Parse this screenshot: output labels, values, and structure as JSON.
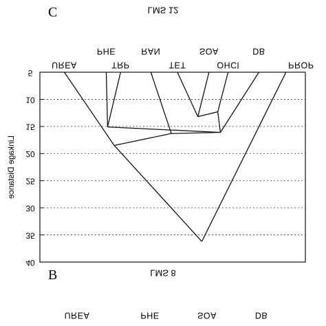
{
  "chart_data": {
    "type": "dendrogram",
    "panel_letter": "C",
    "title": "LMS 12",
    "ylabel": "Linkage Distance",
    "yticks": [
      "5",
      "10",
      "15",
      "20",
      "25",
      "30",
      "35",
      "40"
    ],
    "ylim": [
      5,
      40
    ],
    "y_inverted": true,
    "grid": true,
    "leaves": [
      "UREA",
      "PHE",
      "TRP",
      "RAN",
      "TET",
      "SOA",
      "OHCl",
      "DB",
      "PROP"
    ],
    "merges": [
      {
        "left": "TET",
        "right": "SOA",
        "height": 13.2
      },
      {
        "left": "TET-SOA",
        "right": "OHCl",
        "height": 12.3
      },
      {
        "left": "PHE",
        "right": "TRP",
        "height": 15.1
      },
      {
        "left": "TET-SOA-OHCl",
        "right": "DB",
        "height": 16.1
      },
      {
        "left": "PHE-TRP",
        "right": "RAN-TET-SOA-OHCl-DB",
        "height": 18.5
      },
      {
        "left": "UREA",
        "right": "rest",
        "height": 36.2
      },
      {
        "left": "all",
        "right": "PROP",
        "height": 36.2
      }
    ],
    "bottom_panel": {
      "panel_letter": "B",
      "title": "LMS 8",
      "leaves": [
        "UREA",
        "PHE",
        "SOA",
        "DB"
      ]
    }
  }
}
